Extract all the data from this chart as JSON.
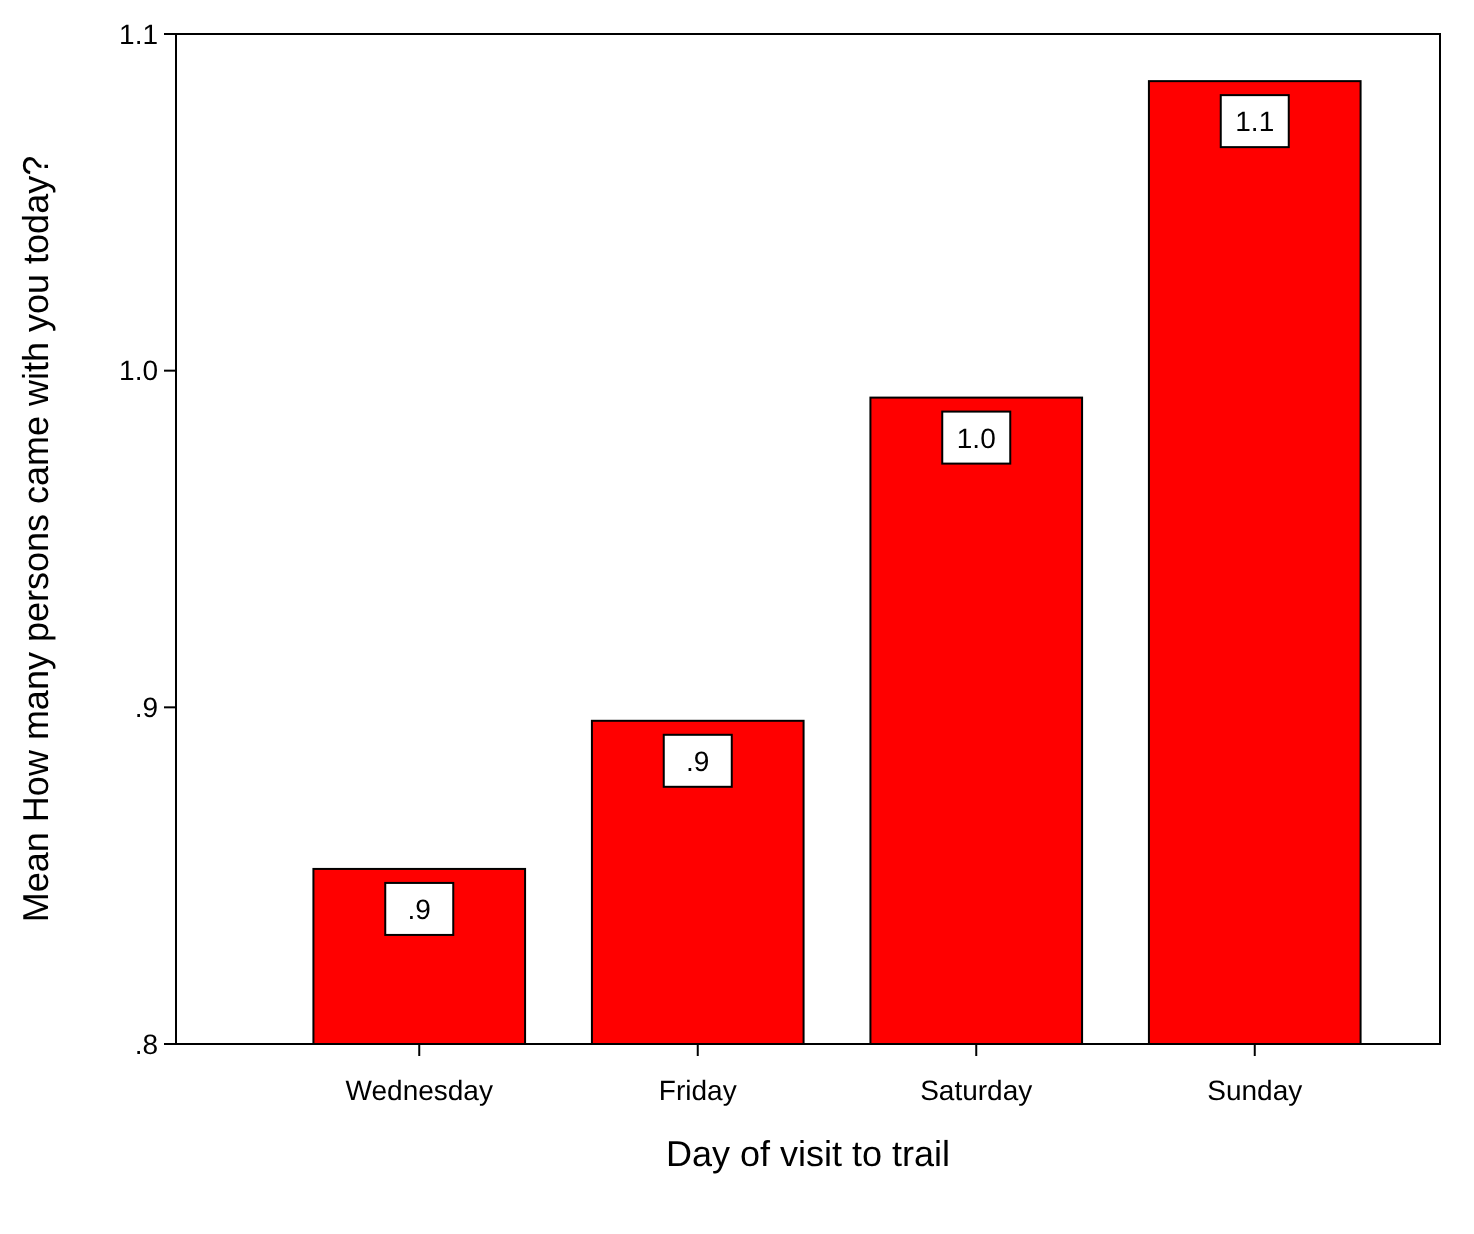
{
  "chart_data": {
    "type": "bar",
    "xlabel": "Day of visit to trail",
    "ylabel": "Mean How many persons came with you today?",
    "categories": [
      "Wednesday",
      "Friday",
      "Saturday",
      "Sunday"
    ],
    "values": [
      0.852,
      0.896,
      0.992,
      1.086
    ],
    "value_labels": [
      ".9",
      ".9",
      "1.0",
      "1.1"
    ],
    "color": "#ff0000",
    "ylim": [
      0.8,
      1.1
    ],
    "yticks": [
      {
        "value": 0.8,
        "label": ".8"
      },
      {
        "value": 0.9,
        "label": ".9"
      },
      {
        "value": 1.0,
        "label": "1.0"
      },
      {
        "value": 1.1,
        "label": "1.1"
      }
    ],
    "grid": false
  }
}
